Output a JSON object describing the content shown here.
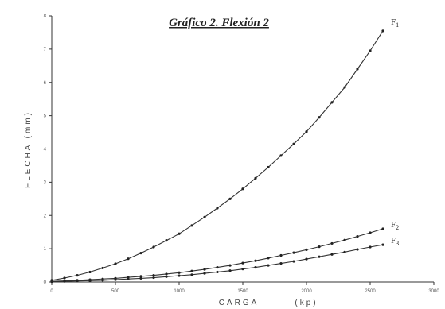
{
  "chart_data": {
    "type": "line",
    "title": "Gráfico 2. Flexión 2",
    "xlabel": "CARGA",
    "xunit": "(kp)",
    "ylabel": "FLECHA (mm)",
    "xlim": [
      0,
      3000
    ],
    "ylim": [
      0,
      8
    ],
    "x_ticks": [
      "0",
      "500",
      "1000",
      "1500",
      "2000",
      "2500",
      "3000"
    ],
    "y_ticks": [
      "0",
      "1",
      "2",
      "3",
      "4",
      "5",
      "6",
      "7",
      "8"
    ],
    "grid": false,
    "series": [
      {
        "name": "F",
        "subscript": "1",
        "x": [
          0,
          100,
          200,
          300,
          400,
          500,
          600,
          700,
          800,
          900,
          1000,
          1100,
          1200,
          1300,
          1400,
          1500,
          1600,
          1700,
          1800,
          1900,
          2000,
          2100,
          2200,
          2300,
          2400,
          2500,
          2600
        ],
        "y": [
          0.05,
          0.12,
          0.2,
          0.3,
          0.42,
          0.55,
          0.7,
          0.87,
          1.05,
          1.25,
          1.45,
          1.7,
          1.95,
          2.22,
          2.5,
          2.8,
          3.12,
          3.45,
          3.8,
          4.15,
          4.52,
          4.95,
          5.4,
          5.85,
          6.4,
          6.95,
          7.55
        ]
      },
      {
        "name": "F",
        "subscript": "2",
        "x": [
          0,
          100,
          200,
          300,
          400,
          500,
          600,
          700,
          800,
          900,
          1000,
          1100,
          1200,
          1300,
          1400,
          1500,
          1600,
          1700,
          1800,
          1900,
          2000,
          2100,
          2200,
          2300,
          2400,
          2500,
          2600
        ],
        "y": [
          0.02,
          0.03,
          0.05,
          0.07,
          0.09,
          0.11,
          0.14,
          0.17,
          0.2,
          0.24,
          0.28,
          0.33,
          0.38,
          0.44,
          0.5,
          0.57,
          0.64,
          0.72,
          0.8,
          0.88,
          0.97,
          1.06,
          1.16,
          1.26,
          1.37,
          1.48,
          1.6
        ]
      },
      {
        "name": "F",
        "subscript": "3",
        "x": [
          0,
          100,
          200,
          300,
          400,
          500,
          600,
          700,
          800,
          900,
          1000,
          1100,
          1200,
          1300,
          1400,
          1500,
          1600,
          1700,
          1800,
          1900,
          2000,
          2100,
          2200,
          2300,
          2400,
          2500,
          2600
        ],
        "y": [
          0.01,
          0.02,
          0.03,
          0.04,
          0.05,
          0.07,
          0.09,
          0.11,
          0.13,
          0.16,
          0.19,
          0.22,
          0.26,
          0.3,
          0.34,
          0.39,
          0.44,
          0.5,
          0.56,
          0.62,
          0.69,
          0.76,
          0.83,
          0.9,
          0.98,
          1.05,
          1.12
        ]
      }
    ]
  }
}
